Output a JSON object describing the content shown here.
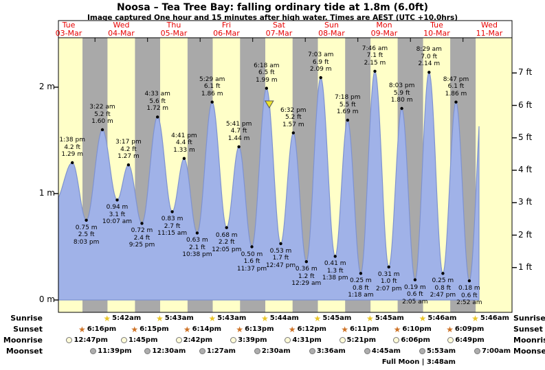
{
  "title": "Noosa – Tea Tree Bay: falling  ordinary tide at 1.8m (6.0ft)",
  "subtitle": "Image captured One hour and 15 minutes after high water. Times are AEST (UTC +10.0hrs)",
  "days": [
    {
      "name": "Tue",
      "date": "03-Mar"
    },
    {
      "name": "Wed",
      "date": "04-Mar"
    },
    {
      "name": "Thu",
      "date": "05-Mar"
    },
    {
      "name": "Fri",
      "date": "06-Mar"
    },
    {
      "name": "Sat",
      "date": "07-Mar"
    },
    {
      "name": "Sun",
      "date": "08-Mar"
    },
    {
      "name": "Mon",
      "date": "09-Mar"
    },
    {
      "name": "Tue",
      "date": "10-Mar"
    },
    {
      "name": "Wed",
      "date": "11-Mar"
    }
  ],
  "chart_data": {
    "type": "area",
    "title": "Noosa – Tea Tree Bay tide height",
    "ylabel_left": "m",
    "ylabel_right": "ft",
    "left_ticks_m": [
      0,
      1,
      2
    ],
    "right_ticks_ft": [
      1,
      2,
      3,
      4,
      5,
      6,
      7
    ],
    "ylim_m": [
      0,
      2.46
    ],
    "window_days": 8,
    "tide_events": [
      {
        "day": 0,
        "time": "1:38 pm",
        "type": "high",
        "height_m": 1.29,
        "height_ft": 4.2
      },
      {
        "day": 0,
        "time": "8:03 pm",
        "type": "low",
        "height_m": 0.75,
        "height_ft": 2.5
      },
      {
        "day": 1,
        "time": "3:22 am",
        "type": "high",
        "height_m": 1.6,
        "height_ft": 5.2
      },
      {
        "day": 1,
        "time": "10:07 am",
        "type": "low",
        "height_m": 0.94,
        "height_ft": 3.1
      },
      {
        "day": 1,
        "time": "3:17 pm",
        "type": "high",
        "height_m": 1.27,
        "height_ft": 4.2
      },
      {
        "day": 1,
        "time": "9:25 pm",
        "type": "low",
        "height_m": 0.72,
        "height_ft": 2.4
      },
      {
        "day": 2,
        "time": "4:33 am",
        "type": "high",
        "height_m": 1.72,
        "height_ft": 5.6
      },
      {
        "day": 2,
        "time": "11:15 am",
        "type": "low",
        "height_m": 0.83,
        "height_ft": 2.7
      },
      {
        "day": 2,
        "time": "4:41 pm",
        "type": "high",
        "height_m": 1.33,
        "height_ft": 4.4
      },
      {
        "day": 2,
        "time": "10:38 pm",
        "type": "low",
        "height_m": 0.63,
        "height_ft": 2.1
      },
      {
        "day": 3,
        "time": "5:29 am",
        "type": "high",
        "height_m": 1.86,
        "height_ft": 6.1
      },
      {
        "day": 3,
        "time": "12:05 pm",
        "type": "low",
        "height_m": 0.68,
        "height_ft": 2.2
      },
      {
        "day": 3,
        "time": "5:41 pm",
        "type": "high",
        "height_m": 1.44,
        "height_ft": 4.7
      },
      {
        "day": 3,
        "time": "11:37 pm",
        "type": "low",
        "height_m": 0.5,
        "height_ft": 1.6
      },
      {
        "day": 4,
        "time": "6:18 am",
        "type": "high",
        "height_m": 1.99,
        "height_ft": 6.5
      },
      {
        "day": 4,
        "time": "12:47 pm",
        "type": "low",
        "height_m": 0.53,
        "height_ft": 1.7
      },
      {
        "day": 4,
        "time": "6:32 pm",
        "type": "high",
        "height_m": 1.57,
        "height_ft": 5.2
      },
      {
        "day": 5,
        "time": "12:29 am",
        "type": "low",
        "height_m": 0.36,
        "height_ft": 1.2
      },
      {
        "day": 5,
        "time": "7:03 am",
        "type": "high",
        "height_m": 2.09,
        "height_ft": 6.9
      },
      {
        "day": 5,
        "time": "1:38 pm",
        "type": "low",
        "height_m": 0.41,
        "height_ft": 1.3
      },
      {
        "day": 5,
        "time": "7:18 pm",
        "type": "high",
        "height_m": 1.69,
        "height_ft": 5.5
      },
      {
        "day": 6,
        "time": "1:18 am",
        "type": "low",
        "height_m": 0.25,
        "height_ft": 0.8
      },
      {
        "day": 6,
        "time": "7:46 am",
        "type": "high",
        "height_m": 2.15,
        "height_ft": 7.1
      },
      {
        "day": 6,
        "time": "2:07 pm",
        "type": "low",
        "height_m": 0.31,
        "height_ft": 1.0
      },
      {
        "day": 6,
        "time": "8:03 pm",
        "type": "high",
        "height_m": 1.8,
        "height_ft": 5.9
      },
      {
        "day": 7,
        "time": "2:05 am",
        "type": "low",
        "height_m": 0.19,
        "height_ft": 0.6
      },
      {
        "day": 7,
        "time": "8:29 am",
        "type": "high",
        "height_m": 2.14,
        "height_ft": 7.0
      },
      {
        "day": 7,
        "time": "2:47 pm",
        "type": "low",
        "height_m": 0.25,
        "height_ft": 0.8
      },
      {
        "day": 7,
        "time": "8:47 pm",
        "type": "high",
        "height_m": 1.86,
        "height_ft": 6.1
      },
      {
        "day": 8,
        "time": "2:52 am",
        "type": "low",
        "height_m": 0.18,
        "height_ft": 0.6
      }
    ],
    "current_marker": {
      "after_event_index": 14,
      "hours_after_high": 1.25,
      "height_m": 1.8
    }
  },
  "astro": {
    "rows": [
      {
        "key": "sunrise",
        "label": "Sunrise",
        "icon": "sunrise-icon",
        "events": [
          {
            "day": 1,
            "time": "5:42am"
          },
          {
            "day": 2,
            "time": "5:43am"
          },
          {
            "day": 3,
            "time": "5:43am"
          },
          {
            "day": 4,
            "time": "5:44am"
          },
          {
            "day": 5,
            "time": "5:45am"
          },
          {
            "day": 6,
            "time": "5:45am"
          },
          {
            "day": 7,
            "time": "5:46am"
          },
          {
            "day": 8,
            "time": "5:46am"
          }
        ]
      },
      {
        "key": "sunset",
        "label": "Sunset",
        "icon": "sunset-icon",
        "events": [
          {
            "day": 0,
            "time": "6:16pm"
          },
          {
            "day": 1,
            "time": "6:15pm"
          },
          {
            "day": 2,
            "time": "6:14pm"
          },
          {
            "day": 3,
            "time": "6:13pm"
          },
          {
            "day": 4,
            "time": "6:12pm"
          },
          {
            "day": 5,
            "time": "6:11pm"
          },
          {
            "day": 6,
            "time": "6:10pm"
          },
          {
            "day": 7,
            "time": "6:09pm"
          }
        ]
      },
      {
        "key": "moonrise",
        "label": "Moonrise",
        "icon": "moonrise-icon",
        "events": [
          {
            "day": 0,
            "time": "12:47pm"
          },
          {
            "day": 1,
            "time": "1:45pm"
          },
          {
            "day": 2,
            "time": "2:42pm"
          },
          {
            "day": 3,
            "time": "3:39pm"
          },
          {
            "day": 4,
            "time": "4:31pm"
          },
          {
            "day": 5,
            "time": "5:21pm"
          },
          {
            "day": 6,
            "time": "6:06pm"
          },
          {
            "day": 7,
            "time": "6:49pm"
          }
        ]
      },
      {
        "key": "moonset",
        "label": "Moonset",
        "icon": "moonset-icon",
        "events": [
          {
            "day": 0,
            "time": "11:39pm"
          },
          {
            "day": 2,
            "time": "12:30am"
          },
          {
            "day": 3,
            "time": "1:27am"
          },
          {
            "day": 4,
            "time": "2:30am"
          },
          {
            "day": 5,
            "time": "3:36am"
          },
          {
            "day": 6,
            "time": "4:45am"
          },
          {
            "day": 7,
            "time": "5:53am"
          },
          {
            "day": 8,
            "time": "7:00am"
          }
        ]
      }
    ],
    "full_moon": {
      "label": "Full Moon | 3:48am",
      "day": 7,
      "time": "3:48am"
    }
  },
  "colors": {
    "day_bg": "#ffffc8",
    "night_bg": "#a9a9a9",
    "tide_fill": "#a0b2e8",
    "tide_stroke": "#7e92d0",
    "date_red": "#e60000",
    "marker_yellow": "#ede32b",
    "sunrise_star": "#e8c428",
    "sunset_star": "#cd7226",
    "moonrise_fill": "#fffbd8",
    "moonset_fill": "#adadad"
  }
}
